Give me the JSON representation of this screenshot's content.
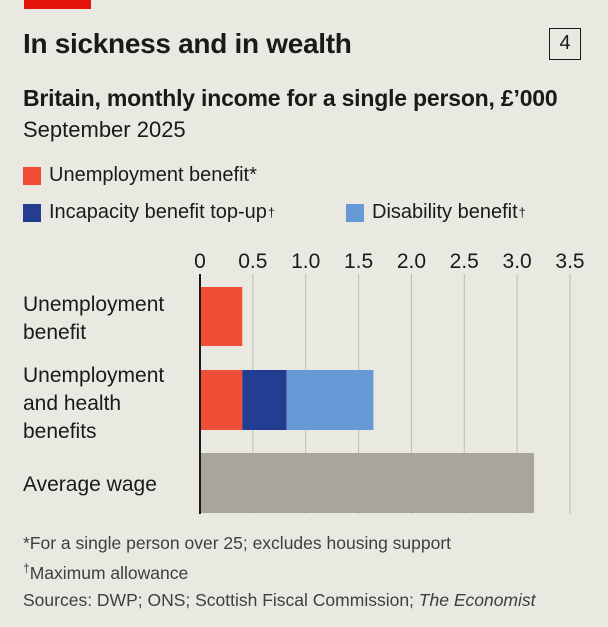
{
  "header": {
    "title": "In sickness and in wealth",
    "chart_number": "4",
    "subtitle": "Britain, monthly income for a single person, £’000",
    "date": "September 2025"
  },
  "colors": {
    "accent": "#e3120b",
    "unemployment": "#f04e37",
    "incapacity": "#233d93",
    "disability": "#6799d6",
    "wage": "#a8a69a",
    "grid": "#bcbcb5",
    "background": "#e9e8e1"
  },
  "chart_data": {
    "type": "bar",
    "orientation": "horizontal",
    "stacked": true,
    "title": "In sickness and in wealth",
    "subtitle": "Britain, monthly income for a single person, £’000",
    "categories": [
      "Unemployment benefit",
      "Unemployment and health benefits",
      "Average wage"
    ],
    "category_lines": [
      [
        "Unemployment",
        "benefit"
      ],
      [
        "Unemployment",
        "and health",
        "benefits"
      ],
      [
        "Average wage"
      ]
    ],
    "legend": [
      {
        "label": "Unemployment benefit*",
        "color": "#f04e37"
      },
      {
        "label": "Incapacity benefit top-up",
        "mark": "†",
        "color": "#233d93"
      },
      {
        "label": "Disability benefit",
        "mark": "†",
        "color": "#6799d6"
      }
    ],
    "legend_placement": "top",
    "series": [
      {
        "name": "Unemployment benefit",
        "color": "#f04e37",
        "values": [
          0.4,
          0.4,
          null
        ]
      },
      {
        "name": "Incapacity benefit top-up",
        "color": "#233d93",
        "values": [
          null,
          0.42,
          null
        ]
      },
      {
        "name": "Disability benefit",
        "color": "#6799d6",
        "values": [
          null,
          0.82,
          null
        ]
      },
      {
        "color": "#a8a69a",
        "values": [
          null,
          null,
          3.16
        ]
      }
    ],
    "xlim": [
      0,
      3.5
    ],
    "xticks": [
      "0",
      "0.5",
      "1.0",
      "1.5",
      "2.0",
      "2.5",
      "3.0",
      "3.5"
    ],
    "grid": true
  },
  "notes": {
    "note1": "*For a single person over 25; excludes housing support",
    "note2_mark": "†",
    "note2": "Maximum allowance",
    "sources_prefix": "Sources: DWP; ONS; Scottish Fiscal Commission; ",
    "sources_italic": "The Economist"
  }
}
